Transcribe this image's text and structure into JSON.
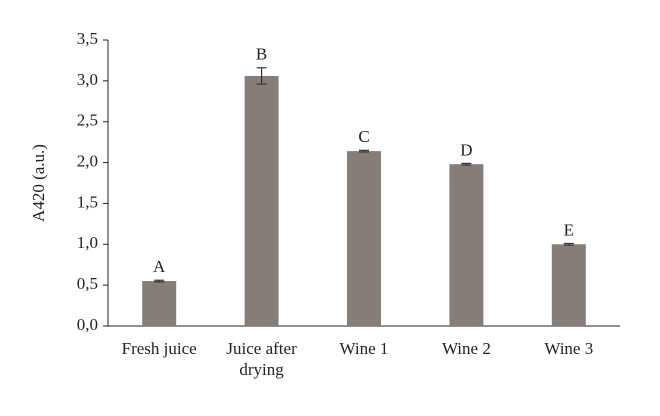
{
  "chart_data": {
    "type": "bar",
    "y_label": "A420 (a.u.)",
    "categories": [
      "Fresh juice",
      "Juice after drying",
      "Wine 1",
      "Wine 2",
      "Wine 3"
    ],
    "values": [
      0.55,
      3.06,
      2.14,
      1.98,
      1.0
    ],
    "errors": [
      0.01,
      0.1,
      0.01,
      0.01,
      0.01
    ],
    "annotations": [
      "A",
      "B",
      "C",
      "D",
      "E"
    ],
    "color": "#867c78",
    "ylim": [
      0,
      3.5
    ],
    "yticks": [
      {
        "value": 0,
        "label": "0,0"
      },
      {
        "value": 0.5,
        "label": "0,5"
      },
      {
        "value": 1,
        "label": "1,0"
      },
      {
        "value": 1.5,
        "label": "1,5"
      },
      {
        "value": 2,
        "label": "2,0"
      },
      {
        "value": 2.5,
        "label": "2,5"
      },
      {
        "value": 3,
        "label": "3,0"
      },
      {
        "value": 3.5,
        "label": "3,5"
      }
    ],
    "grid": false
  }
}
